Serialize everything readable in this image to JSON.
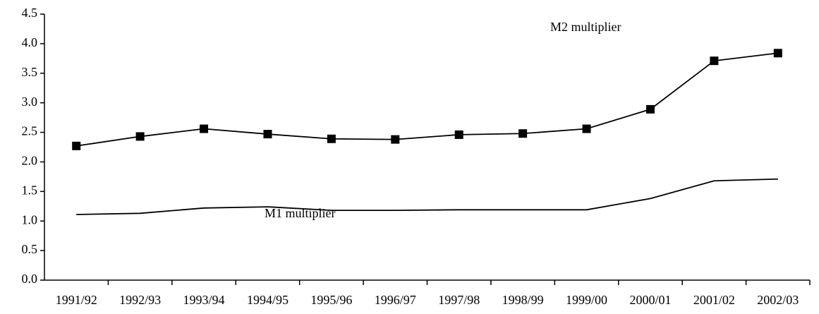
{
  "chart_data": {
    "type": "line",
    "categories": [
      "1991/92",
      "1992/93",
      "1993/94",
      "1994/95",
      "1995/96",
      "1996/97",
      "1997/98",
      "1998/99",
      "1999/00",
      "2000/01",
      "2001/02",
      "2002/03"
    ],
    "series": [
      {
        "name": "M2 multiplier",
        "color": "#000000",
        "marker": "square",
        "values": [
          2.27,
          2.43,
          2.56,
          2.47,
          2.39,
          2.38,
          2.46,
          2.48,
          2.56,
          2.89,
          3.71,
          3.84
        ]
      },
      {
        "name": "M1 multiplier",
        "color": "#000000",
        "values": [
          1.11,
          1.13,
          1.22,
          1.24,
          1.18,
          1.18,
          1.19,
          1.19,
          1.19,
          1.38,
          1.68,
          1.71
        ]
      }
    ],
    "ylim": [
      0,
      4.5
    ],
    "yticks": [
      {
        "value": 0,
        "label": "0.0"
      },
      0.5,
      {
        "value": 1,
        "label": "1.0"
      },
      1.5,
      {
        "value": 2,
        "label": "2.0"
      },
      2.5,
      {
        "value": 3,
        "label": "3.0"
      },
      3.5,
      {
        "value": 4,
        "label": "4.0"
      },
      4.5
    ]
  }
}
